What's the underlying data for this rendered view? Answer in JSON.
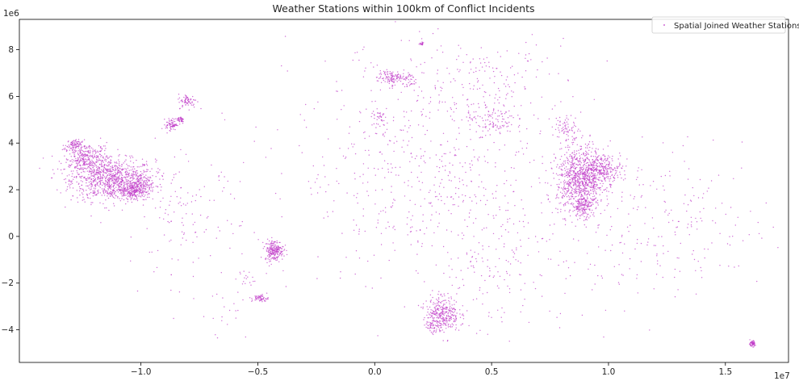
{
  "chart_data": {
    "type": "scatter",
    "title": "Weather Stations within 100km of Conflict Incidents",
    "xlabel": "",
    "ylabel": "",
    "x_offset_label": "1e7",
    "y_offset_label": "1e6",
    "xlim": [
      -15200000,
      17700000
    ],
    "ylim": [
      -5400000,
      9300000
    ],
    "x_ticks": [
      {
        "value": -10000000,
        "label": "−1.0"
      },
      {
        "value": -5000000,
        "label": "−0.5"
      },
      {
        "value": 0,
        "label": "0.0"
      },
      {
        "value": 5000000,
        "label": "0.5"
      },
      {
        "value": 10000000,
        "label": "1.0"
      },
      {
        "value": 15000000,
        "label": "1.5"
      }
    ],
    "y_ticks": [
      {
        "value": -4000000,
        "label": "−4"
      },
      {
        "value": -2000000,
        "label": "−2"
      },
      {
        "value": 0,
        "label": "0"
      },
      {
        "value": 2000000,
        "label": "2"
      },
      {
        "value": 4000000,
        "label": "4"
      },
      {
        "value": 6000000,
        "label": "6"
      },
      {
        "value": 8000000,
        "label": "8"
      }
    ],
    "grid": false,
    "legend_position": "top-right",
    "series": [
      {
        "name": "Spatial Joined Weather Stations",
        "color": "#c03cc8",
        "marker": "point",
        "clusters": [
          {
            "x": -11200000,
            "y": 2400000,
            "sx": 900000,
            "sy": 450000,
            "n": 900
          },
          {
            "x": -12300000,
            "y": 3300000,
            "sx": 500000,
            "sy": 350000,
            "n": 350
          },
          {
            "x": -10300000,
            "y": 1950000,
            "sx": 350000,
            "sy": 150000,
            "n": 220
          },
          {
            "x": -12900000,
            "y": 3900000,
            "sx": 180000,
            "sy": 120000,
            "n": 80
          },
          {
            "x": -10000000,
            "y": 2300000,
            "sx": 250000,
            "sy": 150000,
            "n": 60
          },
          {
            "x": -8700000,
            "y": 4800000,
            "sx": 120000,
            "sy": 120000,
            "n": 70
          },
          {
            "x": -8300000,
            "y": 5000000,
            "sx": 80000,
            "sy": 80000,
            "n": 40
          },
          {
            "x": -8000000,
            "y": 5800000,
            "sx": 200000,
            "sy": 150000,
            "n": 70
          },
          {
            "x": -4300000,
            "y": -600000,
            "sx": 200000,
            "sy": 220000,
            "n": 220
          },
          {
            "x": -4900000,
            "y": -2650000,
            "sx": 180000,
            "sy": 80000,
            "n": 60
          },
          {
            "x": -5500000,
            "y": -1800000,
            "sx": 150000,
            "sy": 200000,
            "n": 15
          },
          {
            "x": 700000,
            "y": 6800000,
            "sx": 300000,
            "sy": 150000,
            "n": 120
          },
          {
            "x": 1500000,
            "y": 6700000,
            "sx": 150000,
            "sy": 200000,
            "n": 25
          },
          {
            "x": 200000,
            "y": 5150000,
            "sx": 150000,
            "sy": 150000,
            "n": 30
          },
          {
            "x": 2000000,
            "y": 8250000,
            "sx": 60000,
            "sy": 40000,
            "n": 20
          },
          {
            "x": 5000000,
            "y": 5000000,
            "sx": 500000,
            "sy": 300000,
            "n": 90
          },
          {
            "x": 2900000,
            "y": -3300000,
            "sx": 350000,
            "sy": 380000,
            "n": 320
          },
          {
            "x": 2500000,
            "y": -3900000,
            "sx": 200000,
            "sy": 150000,
            "n": 40
          },
          {
            "x": 8800000,
            "y": 2400000,
            "sx": 500000,
            "sy": 700000,
            "n": 900
          },
          {
            "x": 9800000,
            "y": 2900000,
            "sx": 400000,
            "sy": 300000,
            "n": 250
          },
          {
            "x": 8200000,
            "y": 4600000,
            "sx": 250000,
            "sy": 300000,
            "n": 70
          },
          {
            "x": 8900000,
            "y": 1300000,
            "sx": 200000,
            "sy": 200000,
            "n": 120
          },
          {
            "x": 16150000,
            "y": -4600000,
            "sx": 70000,
            "sy": 60000,
            "n": 60
          },
          {
            "x": -8200000,
            "y": 800000,
            "sx": 1200000,
            "sy": 1300000,
            "n": 130
          },
          {
            "x": -6300000,
            "y": -3200000,
            "sx": 600000,
            "sy": 700000,
            "n": 20
          },
          {
            "x": 2500000,
            "y": 3000000,
            "sx": 3000000,
            "sy": 2600000,
            "n": 650
          },
          {
            "x": 5500000,
            "y": -1200000,
            "sx": 1800000,
            "sy": 1500000,
            "n": 150
          },
          {
            "x": 12500000,
            "y": 400000,
            "sx": 2200000,
            "sy": 1500000,
            "n": 220
          },
          {
            "x": 4500000,
            "y": 6800000,
            "sx": 1800000,
            "sy": 800000,
            "n": 120
          }
        ]
      }
    ]
  }
}
